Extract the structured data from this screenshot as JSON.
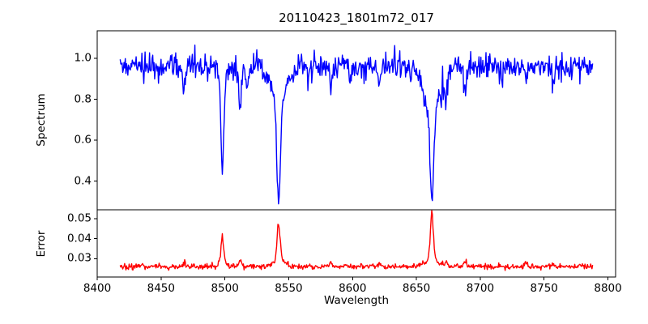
{
  "chart_data": [
    {
      "type": "line",
      "title": "20110423_1801m72_017",
      "ylabel": "Spectrum",
      "line_color": "#0000ff",
      "xlim": [
        8400,
        8806
      ],
      "ylim": [
        0.26,
        1.135
      ],
      "yticks": [
        {
          "v": 0.4,
          "label": "0.4"
        },
        {
          "v": 0.6,
          "label": "0.6"
        },
        {
          "v": 0.8,
          "label": "0.8"
        },
        {
          "v": 1.0,
          "label": "1.0"
        }
      ],
      "x": {
        "start": 8418,
        "end": 8788,
        "step": 0.5
      },
      "n_points": 741,
      "continuum": 0.96,
      "noise_std": 0.033,
      "features_direction": "absorption",
      "features": [
        {
          "center": 8468.0,
          "components": [
            [
              0.1,
              1.0
            ]
          ]
        },
        {
          "center": 8498.0,
          "components": [
            [
              0.44,
              1.1
            ],
            [
              0.06,
              3.0
            ]
          ],
          "min_value": 0.46
        },
        {
          "center": 8512.0,
          "components": [
            [
              0.2,
              1.0
            ]
          ],
          "min_value": 0.75
        },
        {
          "center": 8518.0,
          "components": [
            [
              0.09,
              0.8
            ]
          ]
        },
        {
          "center": 8542.1,
          "components": [
            [
              0.48,
              1.4
            ],
            [
              0.18,
              6.0
            ]
          ],
          "min_value": 0.3
        },
        {
          "center": 8583.0,
          "components": [
            [
              0.1,
              1.0
            ]
          ]
        },
        {
          "center": 8598.0,
          "components": [
            [
              0.08,
              0.9
            ]
          ]
        },
        {
          "center": 8621.0,
          "components": [
            [
              0.08,
              0.9
            ]
          ]
        },
        {
          "center": 8662.1,
          "components": [
            [
              0.46,
              1.4
            ],
            [
              0.2,
              7.0
            ]
          ],
          "min_value": 0.3
        },
        {
          "center": 8673.0,
          "components": [
            [
              0.1,
              1.0
            ]
          ]
        },
        {
          "center": 8688.0,
          "components": [
            [
              0.1,
              1.2
            ]
          ]
        },
        {
          "center": 8717.0,
          "components": [
            [
              0.07,
              0.9
            ]
          ]
        },
        {
          "center": 8736.0,
          "components": [
            [
              0.09,
              1.0
            ]
          ]
        },
        {
          "center": 8757.0,
          "components": [
            [
              0.08,
              0.9
            ]
          ]
        }
      ]
    },
    {
      "type": "line",
      "ylabel": "Error",
      "xlabel": "Wavelength",
      "line_color": "#ff0000",
      "xlim": [
        8400,
        8806
      ],
      "ylim": [
        0.0208,
        0.0544
      ],
      "yticks": [
        {
          "v": 0.03,
          "label": "0.03"
        },
        {
          "v": 0.04,
          "label": "0.04"
        },
        {
          "v": 0.05,
          "label": "0.05"
        }
      ],
      "xticks": [
        {
          "v": 8400,
          "label": "8400"
        },
        {
          "v": 8450,
          "label": "8450"
        },
        {
          "v": 8500,
          "label": "8500"
        },
        {
          "v": 8550,
          "label": "8550"
        },
        {
          "v": 8600,
          "label": "8600"
        },
        {
          "v": 8650,
          "label": "8650"
        },
        {
          "v": 8700,
          "label": "8700"
        },
        {
          "v": 8750,
          "label": "8750"
        },
        {
          "v": 8800,
          "label": "8800"
        }
      ],
      "x": {
        "start": 8418,
        "end": 8788,
        "step": 0.5
      },
      "n_points": 741,
      "continuum": 0.026,
      "noise_std": 0.0007,
      "features_direction": "emission",
      "features": [
        {
          "center": 8468.0,
          "components": [
            [
              0.0018,
              1.0
            ]
          ]
        },
        {
          "center": 8498.0,
          "components": [
            [
              0.014,
              1.1
            ],
            [
              0.001,
              3.0
            ]
          ],
          "peak_value": 0.041
        },
        {
          "center": 8512.0,
          "components": [
            [
              0.003,
              1.0
            ]
          ]
        },
        {
          "center": 8542.1,
          "components": [
            [
              0.018,
              1.2
            ],
            [
              0.003,
              5.0
            ]
          ],
          "peak_value": 0.047
        },
        {
          "center": 8583.0,
          "components": [
            [
              0.002,
              1.0
            ]
          ]
        },
        {
          "center": 8621.0,
          "components": [
            [
              0.0015,
              0.9
            ]
          ]
        },
        {
          "center": 8662.1,
          "components": [
            [
              0.024,
              1.2
            ],
            [
              0.003,
              6.0
            ]
          ],
          "peak_value": 0.053
        },
        {
          "center": 8673.0,
          "components": [
            [
              0.002,
              1.0
            ]
          ]
        },
        {
          "center": 8688.0,
          "components": [
            [
              0.002,
              1.2
            ]
          ]
        },
        {
          "center": 8736.0,
          "components": [
            [
              0.0018,
              1.0
            ]
          ]
        },
        {
          "center": 8757.0,
          "components": [
            [
              0.0015,
              0.9
            ]
          ]
        }
      ]
    }
  ]
}
